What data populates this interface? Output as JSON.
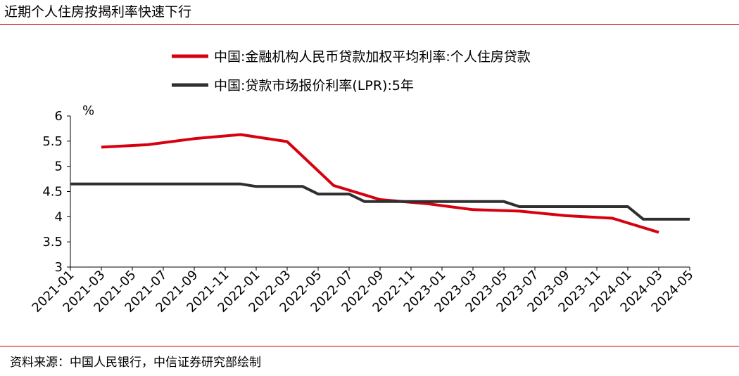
{
  "header": {
    "title": "近期个人住房按揭利率快速下行"
  },
  "footer": {
    "source": "资料来源：中国人民银行，中信证券研究部绘制"
  },
  "chart_data": {
    "type": "line",
    "ylabel": "%",
    "ylim": [
      3,
      6
    ],
    "yticks": [
      "3",
      "3.5",
      "4",
      "4.5",
      "5",
      "5.5",
      "6"
    ],
    "xticks": [
      "2021-01",
      "2021-03",
      "2021-05",
      "2021-07",
      "2021-09",
      "2021-11",
      "2022-01",
      "2022-03",
      "2022-05",
      "2022-07",
      "2022-09",
      "2022-11",
      "2023-01",
      "2023-03",
      "2023-05",
      "2023-07",
      "2023-09",
      "2023-11",
      "2024-01",
      "2024-03",
      "2024-05"
    ],
    "grid": false,
    "legend_position": "top-center",
    "series": [
      {
        "name": "中国:金融机构人民币贷款加权平均利率:个人住房贷款",
        "color": "#d7000f",
        "points": [
          [
            "2021-03",
            5.38
          ],
          [
            "2021-06",
            5.43
          ],
          [
            "2021-09",
            5.55
          ],
          [
            "2021-12",
            5.63
          ],
          [
            "2022-03",
            5.49
          ],
          [
            "2022-06",
            4.62
          ],
          [
            "2022-09",
            4.34
          ],
          [
            "2022-12",
            4.26
          ],
          [
            "2023-03",
            4.14
          ],
          [
            "2023-06",
            4.11
          ],
          [
            "2023-09",
            4.02
          ],
          [
            "2023-12",
            3.97
          ],
          [
            "2024-03",
            3.69
          ]
        ]
      },
      {
        "name": "中国:贷款市场报价利率(LPR):5年",
        "color": "#2f2f2f",
        "points": [
          [
            "2021-01",
            4.65
          ],
          [
            "2021-02",
            4.65
          ],
          [
            "2021-03",
            4.65
          ],
          [
            "2021-04",
            4.65
          ],
          [
            "2021-05",
            4.65
          ],
          [
            "2021-06",
            4.65
          ],
          [
            "2021-07",
            4.65
          ],
          [
            "2021-08",
            4.65
          ],
          [
            "2021-09",
            4.65
          ],
          [
            "2021-10",
            4.65
          ],
          [
            "2021-11",
            4.65
          ],
          [
            "2021-12",
            4.65
          ],
          [
            "2022-01",
            4.6
          ],
          [
            "2022-02",
            4.6
          ],
          [
            "2022-03",
            4.6
          ],
          [
            "2022-04",
            4.6
          ],
          [
            "2022-05",
            4.45
          ],
          [
            "2022-06",
            4.45
          ],
          [
            "2022-07",
            4.45
          ],
          [
            "2022-08",
            4.3
          ],
          [
            "2022-09",
            4.3
          ],
          [
            "2022-10",
            4.3
          ],
          [
            "2022-11",
            4.3
          ],
          [
            "2022-12",
            4.3
          ],
          [
            "2023-01",
            4.3
          ],
          [
            "2023-02",
            4.3
          ],
          [
            "2023-03",
            4.3
          ],
          [
            "2023-04",
            4.3
          ],
          [
            "2023-05",
            4.3
          ],
          [
            "2023-06",
            4.2
          ],
          [
            "2023-07",
            4.2
          ],
          [
            "2023-08",
            4.2
          ],
          [
            "2023-09",
            4.2
          ],
          [
            "2023-10",
            4.2
          ],
          [
            "2023-11",
            4.2
          ],
          [
            "2023-12",
            4.2
          ],
          [
            "2024-01",
            4.2
          ],
          [
            "2024-02",
            3.95
          ],
          [
            "2024-03",
            3.95
          ],
          [
            "2024-04",
            3.95
          ],
          [
            "2024-05",
            3.95
          ]
        ]
      }
    ]
  }
}
